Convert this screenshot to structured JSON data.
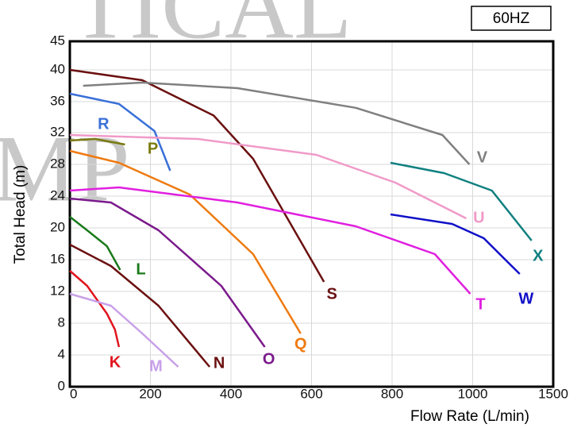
{
  "chart_data": {
    "type": "line",
    "watermark": [
      "TICAL",
      "MP"
    ],
    "badge": "60HZ",
    "x_label": "Flow Rate (L/min)",
    "y_label": "Total Head (m)",
    "xlim": [
      0,
      1500
    ],
    "xticks": [
      0,
      200,
      400,
      600,
      800,
      1000,
      1500
    ],
    "ylim": [
      0,
      45
    ],
    "yticks": [
      0,
      4,
      8,
      12,
      16,
      20,
      24,
      28,
      32,
      36,
      40,
      45
    ],
    "grid": true,
    "series": [
      {
        "name": "K",
        "color": "#e0161e",
        "x": [
          0,
          43,
          92,
          112,
          122
        ],
        "values": [
          14.6,
          12.7,
          9.2,
          7.2,
          5
        ]
      },
      {
        "name": "M",
        "color": "#c8a0e8",
        "x": [
          0,
          102,
          180,
          269
        ],
        "values": [
          11.7,
          10.2,
          6.7,
          2.5
        ]
      },
      {
        "name": "N",
        "color": "#6b1010",
        "x": [
          0,
          102,
          220,
          347
        ],
        "values": [
          17.9,
          15.2,
          10.2,
          2.5
        ]
      },
      {
        "name": "L",
        "color": "#1a7a1a",
        "x": [
          0,
          43,
          92,
          125
        ],
        "values": [
          21.4,
          19.7,
          17.7,
          14.7
        ]
      },
      {
        "name": "O",
        "color": "#7b1a8c",
        "x": [
          0,
          102,
          220,
          376,
          484
        ],
        "values": [
          23.7,
          23.2,
          19.7,
          12.7,
          5
        ]
      },
      {
        "name": "Q",
        "color": "#ee7a10",
        "x": [
          0,
          122,
          298,
          455,
          573
        ],
        "values": [
          29.7,
          28.2,
          24.2,
          16.7,
          6.7
        ]
      },
      {
        "name": "P",
        "color": "#7a7a10",
        "x": [
          0,
          63,
          137
        ],
        "values": [
          31,
          31.2,
          30.5
        ]
      },
      {
        "name": "R",
        "color": "#3a70d8",
        "x": [
          0,
          122,
          210,
          249
        ],
        "values": [
          37,
          35.7,
          32.2,
          27.2
        ]
      },
      {
        "name": "S",
        "color": "#6b1010",
        "x": [
          0,
          180,
          357,
          455,
          631
        ],
        "values": [
          40,
          38.7,
          34.2,
          28.7,
          13.2
        ]
      },
      {
        "name": "V",
        "color": "#808080",
        "x": [
          33,
          180,
          416,
          710,
          925,
          992
        ],
        "values": [
          38,
          38.4,
          37.7,
          35.2,
          31.7,
          28
        ]
      },
      {
        "name": "U",
        "color": "#f09ac8",
        "x": [
          0,
          318,
          612,
          808,
          984
        ],
        "values": [
          31.7,
          31.2,
          29.2,
          25.7,
          21.2
        ]
      },
      {
        "name": "T",
        "color": "#e020e0",
        "x": [
          0,
          122,
          416,
          710,
          906,
          994
        ],
        "values": [
          24.7,
          25.1,
          23.2,
          20.2,
          16.7,
          11.7
        ]
      },
      {
        "name": "X",
        "color": "#108080",
        "x": [
          796,
          929,
          1119,
          1366
        ],
        "values": [
          28.2,
          26.9,
          24.7,
          18.4
        ]
      },
      {
        "name": "W",
        "color": "#1010c8",
        "x": [
          796,
          949,
          1069,
          1292
        ],
        "values": [
          21.7,
          20.5,
          18.7,
          14.2
        ]
      }
    ]
  }
}
